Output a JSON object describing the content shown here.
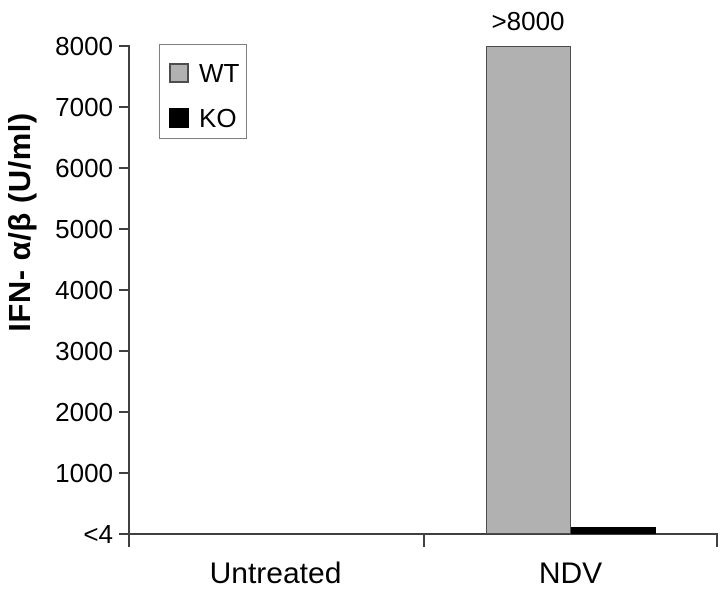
{
  "chart_data": {
    "type": "bar",
    "title": "",
    "ylabel": "IFN- α/β (U/ml)",
    "xlabel": "",
    "categories": [
      "Untreated",
      "NDV"
    ],
    "series": [
      {
        "name": "WT",
        "color": "#b1b1b1",
        "border_color": "#4d4d4d",
        "values": [
          0,
          8000
        ]
      },
      {
        "name": "KO",
        "color": "#000000",
        "border_color": "#000000",
        "values": [
          0,
          110
        ]
      }
    ],
    "value_notes": {
      "untreated_both_series": "below detection limit <4, no visible bar",
      "ndv_wt": "labeled >8000, bar drawn at axis maximum",
      "ndv_ko": "approximately 110, estimated from bar height (unlabeled)"
    },
    "yticks": [
      {
        "label": "8000",
        "value": 8000
      },
      {
        "label": "7000",
        "value": 7000
      },
      {
        "label": "6000",
        "value": 6000
      },
      {
        "label": "5000",
        "value": 5000
      },
      {
        "label": "4000",
        "value": 4000
      },
      {
        "label": "3000",
        "value": 3000
      },
      {
        "label": "2000",
        "value": 2000
      },
      {
        "label": "1000",
        "value": 1000
      },
      {
        "label": "<4",
        "value": 0
      }
    ],
    "ylim": [
      0,
      8000
    ],
    "grid": false,
    "legend": {
      "position": "top-left",
      "entries": [
        {
          "label": "WT",
          "swatch_color": "#b1b1b1",
          "swatch_border": "#4d4d4d"
        },
        {
          "label": "KO",
          "swatch_color": "#000000",
          "swatch_border": "#000000"
        }
      ]
    },
    "annotations": [
      {
        "text": ">8000",
        "category": "NDV",
        "series": "WT",
        "position": "above-bar"
      }
    ],
    "colors": {
      "axis": "#404040",
      "text": "#000000",
      "background": "#ffffff"
    }
  }
}
